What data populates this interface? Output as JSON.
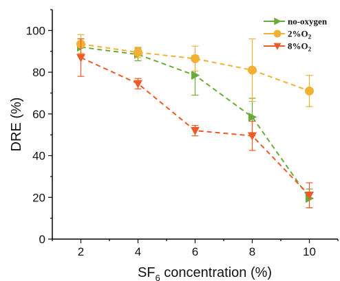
{
  "chart_data": {
    "type": "line",
    "xlabel": "SF",
    "xlabel_sub": "6",
    "xlabel_rest": " concentration (%)",
    "ylabel": "DRE (%)",
    "xlim": [
      1,
      11
    ],
    "ylim": [
      0,
      110
    ],
    "x": [
      2,
      4,
      6,
      8,
      10
    ],
    "x_ticks": [
      2,
      4,
      6,
      8,
      10
    ],
    "y_ticks": [
      0,
      20,
      40,
      60,
      80,
      100
    ],
    "grid": false,
    "legend_position": "top-right",
    "series": [
      {
        "name": "no-oxygen",
        "legend_text": "no-oxygen",
        "legend_sub": "",
        "marker": "triangle-right",
        "color": "#6aaa3a",
        "values": [
          92,
          88.5,
          78.5,
          58.5,
          19.5
        ],
        "errors": [
          4,
          3,
          9.5,
          9,
          4.5
        ]
      },
      {
        "name": "2%O2",
        "legend_text": "2%O",
        "legend_sub": "2",
        "marker": "circle",
        "color": "#f2b134",
        "values": [
          93.5,
          89.5,
          86.5,
          81,
          71
        ],
        "errors": [
          4.5,
          2.5,
          6,
          15,
          7.5
        ]
      },
      {
        "name": "8%O2",
        "legend_text": "8%O",
        "legend_sub": "2",
        "marker": "triangle-down",
        "color": "#f05a28",
        "values": [
          87,
          74.5,
          52,
          49.5,
          21
        ],
        "errors": [
          9,
          2.5,
          2.5,
          7,
          6
        ]
      }
    ]
  }
}
